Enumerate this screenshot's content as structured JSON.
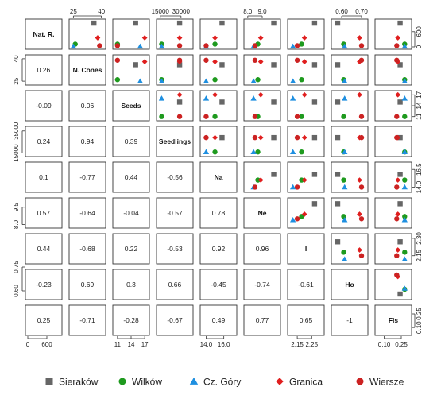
{
  "chart_data": {
    "type": "scatter",
    "variables": [
      "Nat. R.",
      "N. Cones",
      "Seeds",
      "Seedlings",
      "Na",
      "Ne",
      "I",
      "Ho",
      "Fis"
    ],
    "sites": [
      {
        "name": "Sieraków",
        "shape": "square",
        "color": "#666666"
      },
      {
        "name": "Wilków",
        "shape": "circle",
        "color": "#1e9a1e"
      },
      {
        "name": "Cz. Góry",
        "shape": "triangle",
        "color": "#1e8fe0"
      },
      {
        "name": "Granica",
        "shape": "diamond",
        "color": "#e01e1e"
      },
      {
        "name": "Wiersze",
        "shape": "circle",
        "color": "#cc2222"
      }
    ],
    "values": [
      [
        935,
        36,
        15,
        29000,
        15.8,
        9.8,
        2.27,
        0.58,
        0.24
      ],
      [
        110,
        26,
        11,
        16000,
        15.0,
        8.7,
        2.18,
        0.61,
        0.28
      ],
      [
        20,
        25,
        16,
        16000,
        14.0,
        8.4,
        2.12,
        0.615,
        0.28
      ],
      [
        360,
        38,
        17,
        29000,
        15.0,
        8.9,
        2.2,
        0.69,
        0.22
      ],
      [
        50,
        39,
        11,
        29000,
        14.0,
        8.5,
        2.15,
        0.7,
        0.21
      ]
    ],
    "ranges": [
      [
        0,
        1000
      ],
      [
        24,
        41
      ],
      [
        10.5,
        17.5
      ],
      [
        14000,
        37000
      ],
      [
        13.6,
        17.2
      ],
      [
        7.9,
        10.1
      ],
      [
        2.1,
        2.32
      ],
      [
        0.56,
        0.72
      ],
      [
        0.04,
        0.32
      ]
    ],
    "correlations": [
      [
        "0.26"
      ],
      [
        "-0.09",
        "0.06"
      ],
      [
        "0.24",
        "0.94",
        "0.39"
      ],
      [
        "0.1",
        "-0.77",
        "0.44",
        "-0.56"
      ],
      [
        "0.57",
        "-0.64",
        "-0.04",
        "-0.57",
        "0.78"
      ],
      [
        "0.44",
        "-0.68",
        "0.22",
        "-0.53",
        "0.92",
        "0.96"
      ],
      [
        "-0.23",
        "0.69",
        "0.3",
        "0.66",
        "-0.45",
        "-0.74",
        "-0.61"
      ],
      [
        "0.25",
        "-0.71",
        "-0.28",
        "-0.67",
        "0.49",
        "0.77",
        "0.65",
        "-1"
      ]
    ],
    "top_axis_ticks": [
      {
        "var": 1,
        "values": [
          25,
          40
        ],
        "labels": [
          "25",
          "40"
        ]
      },
      {
        "var": 3,
        "values": [
          15000,
          30000
        ],
        "labels": [
          "15000",
          "30000"
        ]
      },
      {
        "var": 5,
        "values": [
          8.0,
          9.0
        ],
        "labels": [
          "8.0",
          "9.0"
        ]
      },
      {
        "var": 7,
        "values": [
          0.6,
          0.7
        ],
        "labels": [
          "0.60",
          "0.70"
        ]
      }
    ],
    "bottom_axis_ticks": [
      {
        "var": 0,
        "values": [
          0,
          600
        ],
        "labels": [
          "0",
          "600"
        ]
      },
      {
        "var": 2,
        "values": [
          11,
          14,
          17
        ],
        "labels": [
          "11",
          "14",
          "17"
        ]
      },
      {
        "var": 4,
        "values": [
          14.0,
          16.0
        ],
        "labels": [
          "14.0",
          "16.0"
        ]
      },
      {
        "var": 6,
        "values": [
          2.15,
          2.25
        ],
        "labels": [
          "2.15",
          "2.25"
        ]
      },
      {
        "var": 8,
        "values": [
          0.1,
          0.25
        ],
        "labels": [
          "0.10",
          "0.25"
        ]
      }
    ],
    "left_axis_ticks": [
      {
        "var": 1,
        "values": [
          25,
          40
        ],
        "labels": [
          "25",
          "40"
        ]
      },
      {
        "var": 3,
        "values": [
          15000,
          35000
        ],
        "labels": [
          "15000",
          "35000"
        ]
      },
      {
        "var": 5,
        "values": [
          8.0,
          9.5
        ],
        "labels": [
          "8.0",
          "9.5"
        ]
      },
      {
        "var": 7,
        "values": [
          0.6,
          0.75
        ],
        "labels": [
          "0.60",
          "0.75"
        ]
      }
    ],
    "right_axis_ticks": [
      {
        "var": 0,
        "values": [
          0,
          600
        ],
        "labels": [
          "0",
          "600"
        ]
      },
      {
        "var": 2,
        "values": [
          11,
          14,
          17
        ],
        "labels": [
          "11",
          "14",
          "17"
        ]
      },
      {
        "var": 4,
        "values": [
          14.0,
          16.5
        ],
        "labels": [
          "14.0",
          "16.5"
        ]
      },
      {
        "var": 6,
        "values": [
          2.15,
          2.3
        ],
        "labels": [
          "2.15",
          "2.30"
        ]
      },
      {
        "var": 8,
        "values": [
          0.1,
          0.25
        ],
        "labels": [
          "0.10",
          "0.25"
        ]
      }
    ],
    "legend_position": "bottom"
  }
}
